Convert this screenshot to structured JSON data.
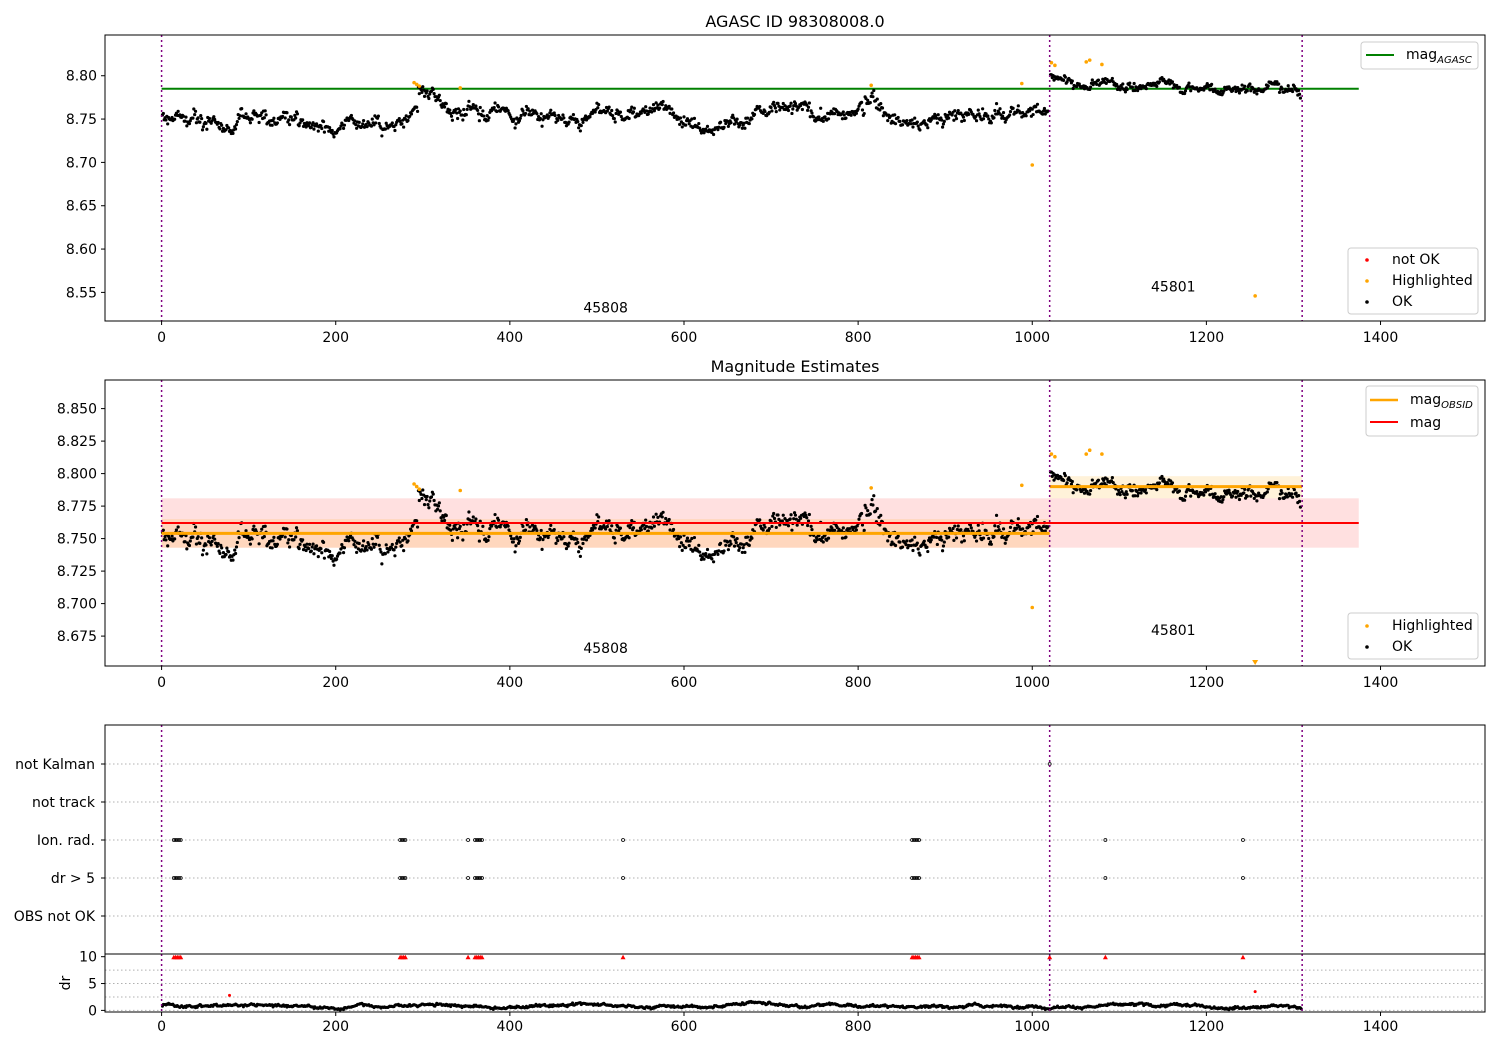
{
  "chart_data": [
    {
      "type": "scatter",
      "title": "AGASC ID 98308008.0",
      "xlabel": "",
      "ylabel": "",
      "xlim": [
        -65,
        1520
      ],
      "ylim": [
        8.517,
        8.847
      ],
      "xticks": [
        "0",
        "200",
        "400",
        "600",
        "800",
        "1000",
        "1200",
        "1400"
      ],
      "yticks": [
        "8.55",
        "8.60",
        "8.65",
        "8.70",
        "8.75",
        "8.80"
      ],
      "ytick_values": [
        8.55,
        8.6,
        8.65,
        8.7,
        8.75,
        8.8
      ],
      "grid": false,
      "legends": [
        {
          "position": "top-right",
          "entries": [
            {
              "label": "mag",
              "sub": "AGASC",
              "color": "#008000",
              "kind": "line"
            }
          ]
        },
        {
          "position": "bottom-right",
          "entries": [
            {
              "label": "not OK",
              "color": "#ff0000",
              "kind": "dot"
            },
            {
              "label": "Highlighted",
              "color": "#ffa500",
              "kind": "dot"
            },
            {
              "label": "OK",
              "color": "#000000",
              "kind": "dot"
            }
          ]
        }
      ],
      "obsid_boundaries": [
        0,
        1020,
        1310
      ],
      "obsid_labels": [
        {
          "text": "45808",
          "x": 510,
          "y": 8.527
        },
        {
          "text": "45801",
          "x": 1162,
          "y": 8.551
        }
      ],
      "reference_lines": [
        {
          "name": "mag_AGASC",
          "y": 8.785,
          "x": [
            0,
            1375
          ],
          "color": "#008000"
        }
      ],
      "segments": [
        {
          "x0": 0,
          "x1": 1020,
          "mean": 8.754,
          "sd": 0.011,
          "excursions": [
            [
              295,
              345,
              0.025
            ],
            [
              808,
              830,
              0.02
            ],
            [
              975,
              1000,
              0.01
            ]
          ]
        },
        {
          "x0": 1020,
          "x1": 1310,
          "mean": 8.789,
          "sd": 0.007,
          "excursions": [
            [
              1020,
              1060,
              0.015
            ]
          ]
        }
      ],
      "highlighted_points": [
        [
          290,
          8.792
        ],
        [
          293,
          8.79
        ],
        [
          296,
          8.788
        ],
        [
          343,
          8.786
        ],
        [
          815,
          8.789
        ],
        [
          988,
          8.791
        ],
        [
          1000,
          8.697
        ],
        [
          1022,
          8.815
        ],
        [
          1026,
          8.812
        ],
        [
          1062,
          8.816
        ],
        [
          1066,
          8.818
        ],
        [
          1080,
          8.813
        ],
        [
          1256,
          8.546
        ]
      ],
      "not_ok_points": []
    },
    {
      "type": "scatter",
      "title": "Magnitude Estimates",
      "xlabel": "",
      "ylabel": "",
      "xlim": [
        -65,
        1520
      ],
      "ylim": [
        8.652,
        8.872
      ],
      "xticks": [
        "0",
        "200",
        "400",
        "600",
        "800",
        "1000",
        "1200",
        "1400"
      ],
      "yticks": [
        "8.675",
        "8.700",
        "8.725",
        "8.750",
        "8.775",
        "8.800",
        "8.825",
        "8.850"
      ],
      "ytick_values": [
        8.675,
        8.7,
        8.725,
        8.75,
        8.775,
        8.8,
        8.825,
        8.85
      ],
      "grid": false,
      "legends": [
        {
          "position": "top-right",
          "entries": [
            {
              "label": "mag",
              "sub": "OBSID",
              "color": "#ffa500",
              "kind": "line"
            },
            {
              "label": "mag",
              "sub": "",
              "color": "#ff0000",
              "kind": "line"
            }
          ]
        },
        {
          "position": "bottom-right",
          "entries": [
            {
              "label": "Highlighted",
              "color": "#ffa500",
              "kind": "dot"
            },
            {
              "label": "OK",
              "color": "#000000",
              "kind": "dot"
            }
          ]
        }
      ],
      "obsid_boundaries": [
        0,
        1020,
        1310
      ],
      "obsid_labels": [
        {
          "text": "45808",
          "x": 510,
          "y": 8.662
        },
        {
          "text": "45801",
          "x": 1162,
          "y": 8.676
        }
      ],
      "bands": [
        {
          "x0": 0,
          "x1": 1375,
          "y0": 8.743,
          "y1": 8.781,
          "color": "#ff0000",
          "opacity": 0.12
        },
        {
          "x0": 0,
          "x1": 1020,
          "y0": 8.743,
          "y1": 8.765,
          "color": "#ffa500",
          "opacity": 0.15
        },
        {
          "x0": 1020,
          "x1": 1310,
          "y0": 8.781,
          "y1": 8.798,
          "color": "#ffa500",
          "opacity": 0.15
        }
      ],
      "reference_lines": [
        {
          "name": "mag",
          "y": 8.762,
          "x": [
            0,
            1375
          ],
          "color": "#ff0000"
        },
        {
          "name": "mag_OBSID",
          "y": 8.754,
          "x": [
            0,
            1020
          ],
          "color": "#ffa500"
        },
        {
          "name": "mag_OBSID",
          "y": 8.79,
          "x": [
            1020,
            1310
          ],
          "color": "#ffa500"
        }
      ],
      "highlighted_points": [
        [
          290,
          8.792
        ],
        [
          293,
          8.79
        ],
        [
          296,
          8.788
        ],
        [
          343,
          8.787
        ],
        [
          815,
          8.789
        ],
        [
          988,
          8.791
        ],
        [
          1000,
          8.697
        ],
        [
          1022,
          8.815
        ],
        [
          1026,
          8.813
        ],
        [
          1062,
          8.815
        ],
        [
          1066,
          8.818
        ],
        [
          1080,
          8.815
        ],
        [
          1256,
          8.652
        ]
      ]
    },
    {
      "type": "scatter",
      "title": "",
      "xlabel": "",
      "ylabel": "",
      "xlim": [
        -65,
        1520
      ],
      "categories": [
        "not Kalman",
        "not track",
        "Ion. rad.",
        "dr > 5",
        "OBS not OK"
      ],
      "grid": true,
      "obsid_boundaries": [
        0,
        1020,
        1310
      ],
      "flag_positions": {
        "not Kalman": [
          1020
        ],
        "not track": [],
        "Ion. rad.": [
          14,
          16,
          18,
          20,
          22,
          274,
          276,
          278,
          280,
          352,
          360,
          362,
          364,
          366,
          368,
          530,
          862,
          864,
          866,
          868,
          870,
          1084,
          1242
        ],
        "dr > 5": [
          14,
          16,
          18,
          20,
          22,
          274,
          276,
          278,
          280,
          352,
          360,
          362,
          364,
          366,
          368,
          530,
          862,
          864,
          866,
          868,
          870,
          1084,
          1242
        ],
        "OBS not OK": []
      }
    },
    {
      "type": "scatter",
      "title": "",
      "xlabel": "",
      "ylabel": "dr",
      "xlim": [
        -65,
        1520
      ],
      "ylim": [
        -0.3,
        10.5
      ],
      "xticks": [
        "0",
        "200",
        "400",
        "600",
        "800",
        "1000",
        "1200",
        "1400"
      ],
      "yticks": [
        "0",
        "5",
        "10"
      ],
      "ytick_values": [
        0,
        5,
        10
      ],
      "grid": true,
      "obsid_boundaries": [
        0,
        1020,
        1310
      ],
      "dr_series": [
        {
          "x0": 0,
          "x1": 1310,
          "typical": 0.8,
          "spread": 0.6
        }
      ],
      "clipped_points_red": [
        14,
        16,
        18,
        20,
        22,
        274,
        276,
        278,
        280,
        352,
        360,
        362,
        364,
        366,
        368,
        530,
        862,
        864,
        866,
        868,
        870,
        1020,
        1084,
        1242
      ],
      "outliers_red": [
        [
          78,
          2.8
        ],
        [
          1256,
          3.5
        ]
      ]
    }
  ]
}
